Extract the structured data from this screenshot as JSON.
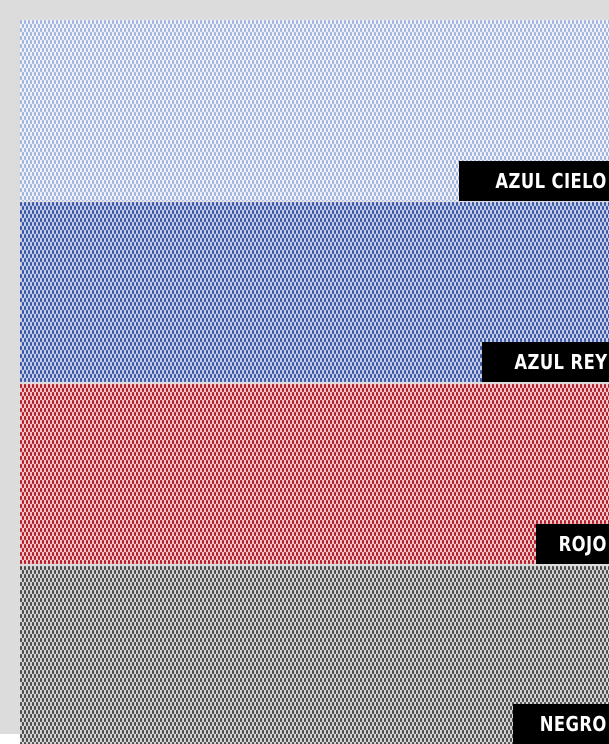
{
  "swatches": [
    {
      "label": "AZUL CIELO",
      "color": "#9fb3dc",
      "base": "#f3f5fb"
    },
    {
      "label": "AZUL REY",
      "color": "#3a55a5",
      "base": "#c9d2ea"
    },
    {
      "label": "ROJO",
      "color": "#b01e2a",
      "base": "#f1c9cc"
    },
    {
      "label": "NEGRO",
      "color": "#4a4a4a",
      "base": "#d8d8d8"
    }
  ]
}
